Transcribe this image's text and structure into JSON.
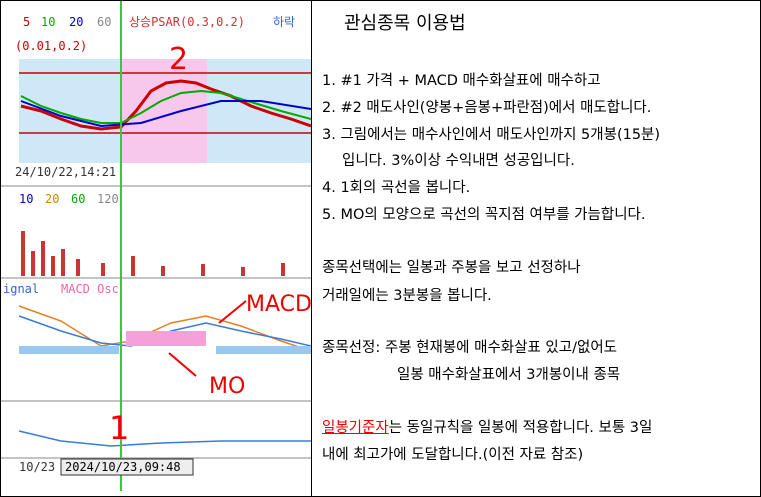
{
  "chart_panel": {
    "price_legend": [
      "5",
      "10",
      "20",
      "60",
      "상승PSAR(0.3,0.2)",
      "하락"
    ],
    "psar_params": "(0.01,0.2)",
    "price_time": "24/10/22,14:21",
    "volume_legend": [
      "10",
      "20",
      "60",
      "120"
    ],
    "macd_legend": [
      "ignal",
      "MACD Osc"
    ],
    "date_left": "10/23",
    "cursor_time": "2024/10/23,09:48",
    "annotations": [
      "2",
      "MACD",
      "MO",
      "1"
    ]
  },
  "document": {
    "title": "관심종목 이용법",
    "items": [
      [
        "1. #1 가격 + MACD 매수화살표에 매수하고"
      ],
      [
        "2. #2 매도사인(양봉+음봉+파란점)에서 매도합니다."
      ],
      [
        "3. 그림에서는 매수사인에서 매도사인까지 5개봉(15분)",
        "입니다. 3%이상 수익내면 성공입니다."
      ],
      [
        "4. 1회의 곡선을 봅니다."
      ],
      [
        "5. MO의 모양으로 곡선의 꼭지점 여부를 가늠합니다."
      ]
    ],
    "paragraph_1": [
      "종목선택에는 일봉과 주봉을 보고 선정하나",
      "거래일에는 3분봉을 봅니다."
    ],
    "paragraph_2": [
      "종목선정: 주봉 현재봉에 매수화살표 있고/없어도",
      "일봉 매수화살표에서 3개봉이내 종목"
    ],
    "paragraph_3": {
      "highlight": "일봉기준자",
      "rest": "는 동일규칙을 일봉에 적용합니다. 보통 3일",
      "line_2": "내에 최고가에 도달합니다.(이전 자료 참조)"
    }
  }
}
